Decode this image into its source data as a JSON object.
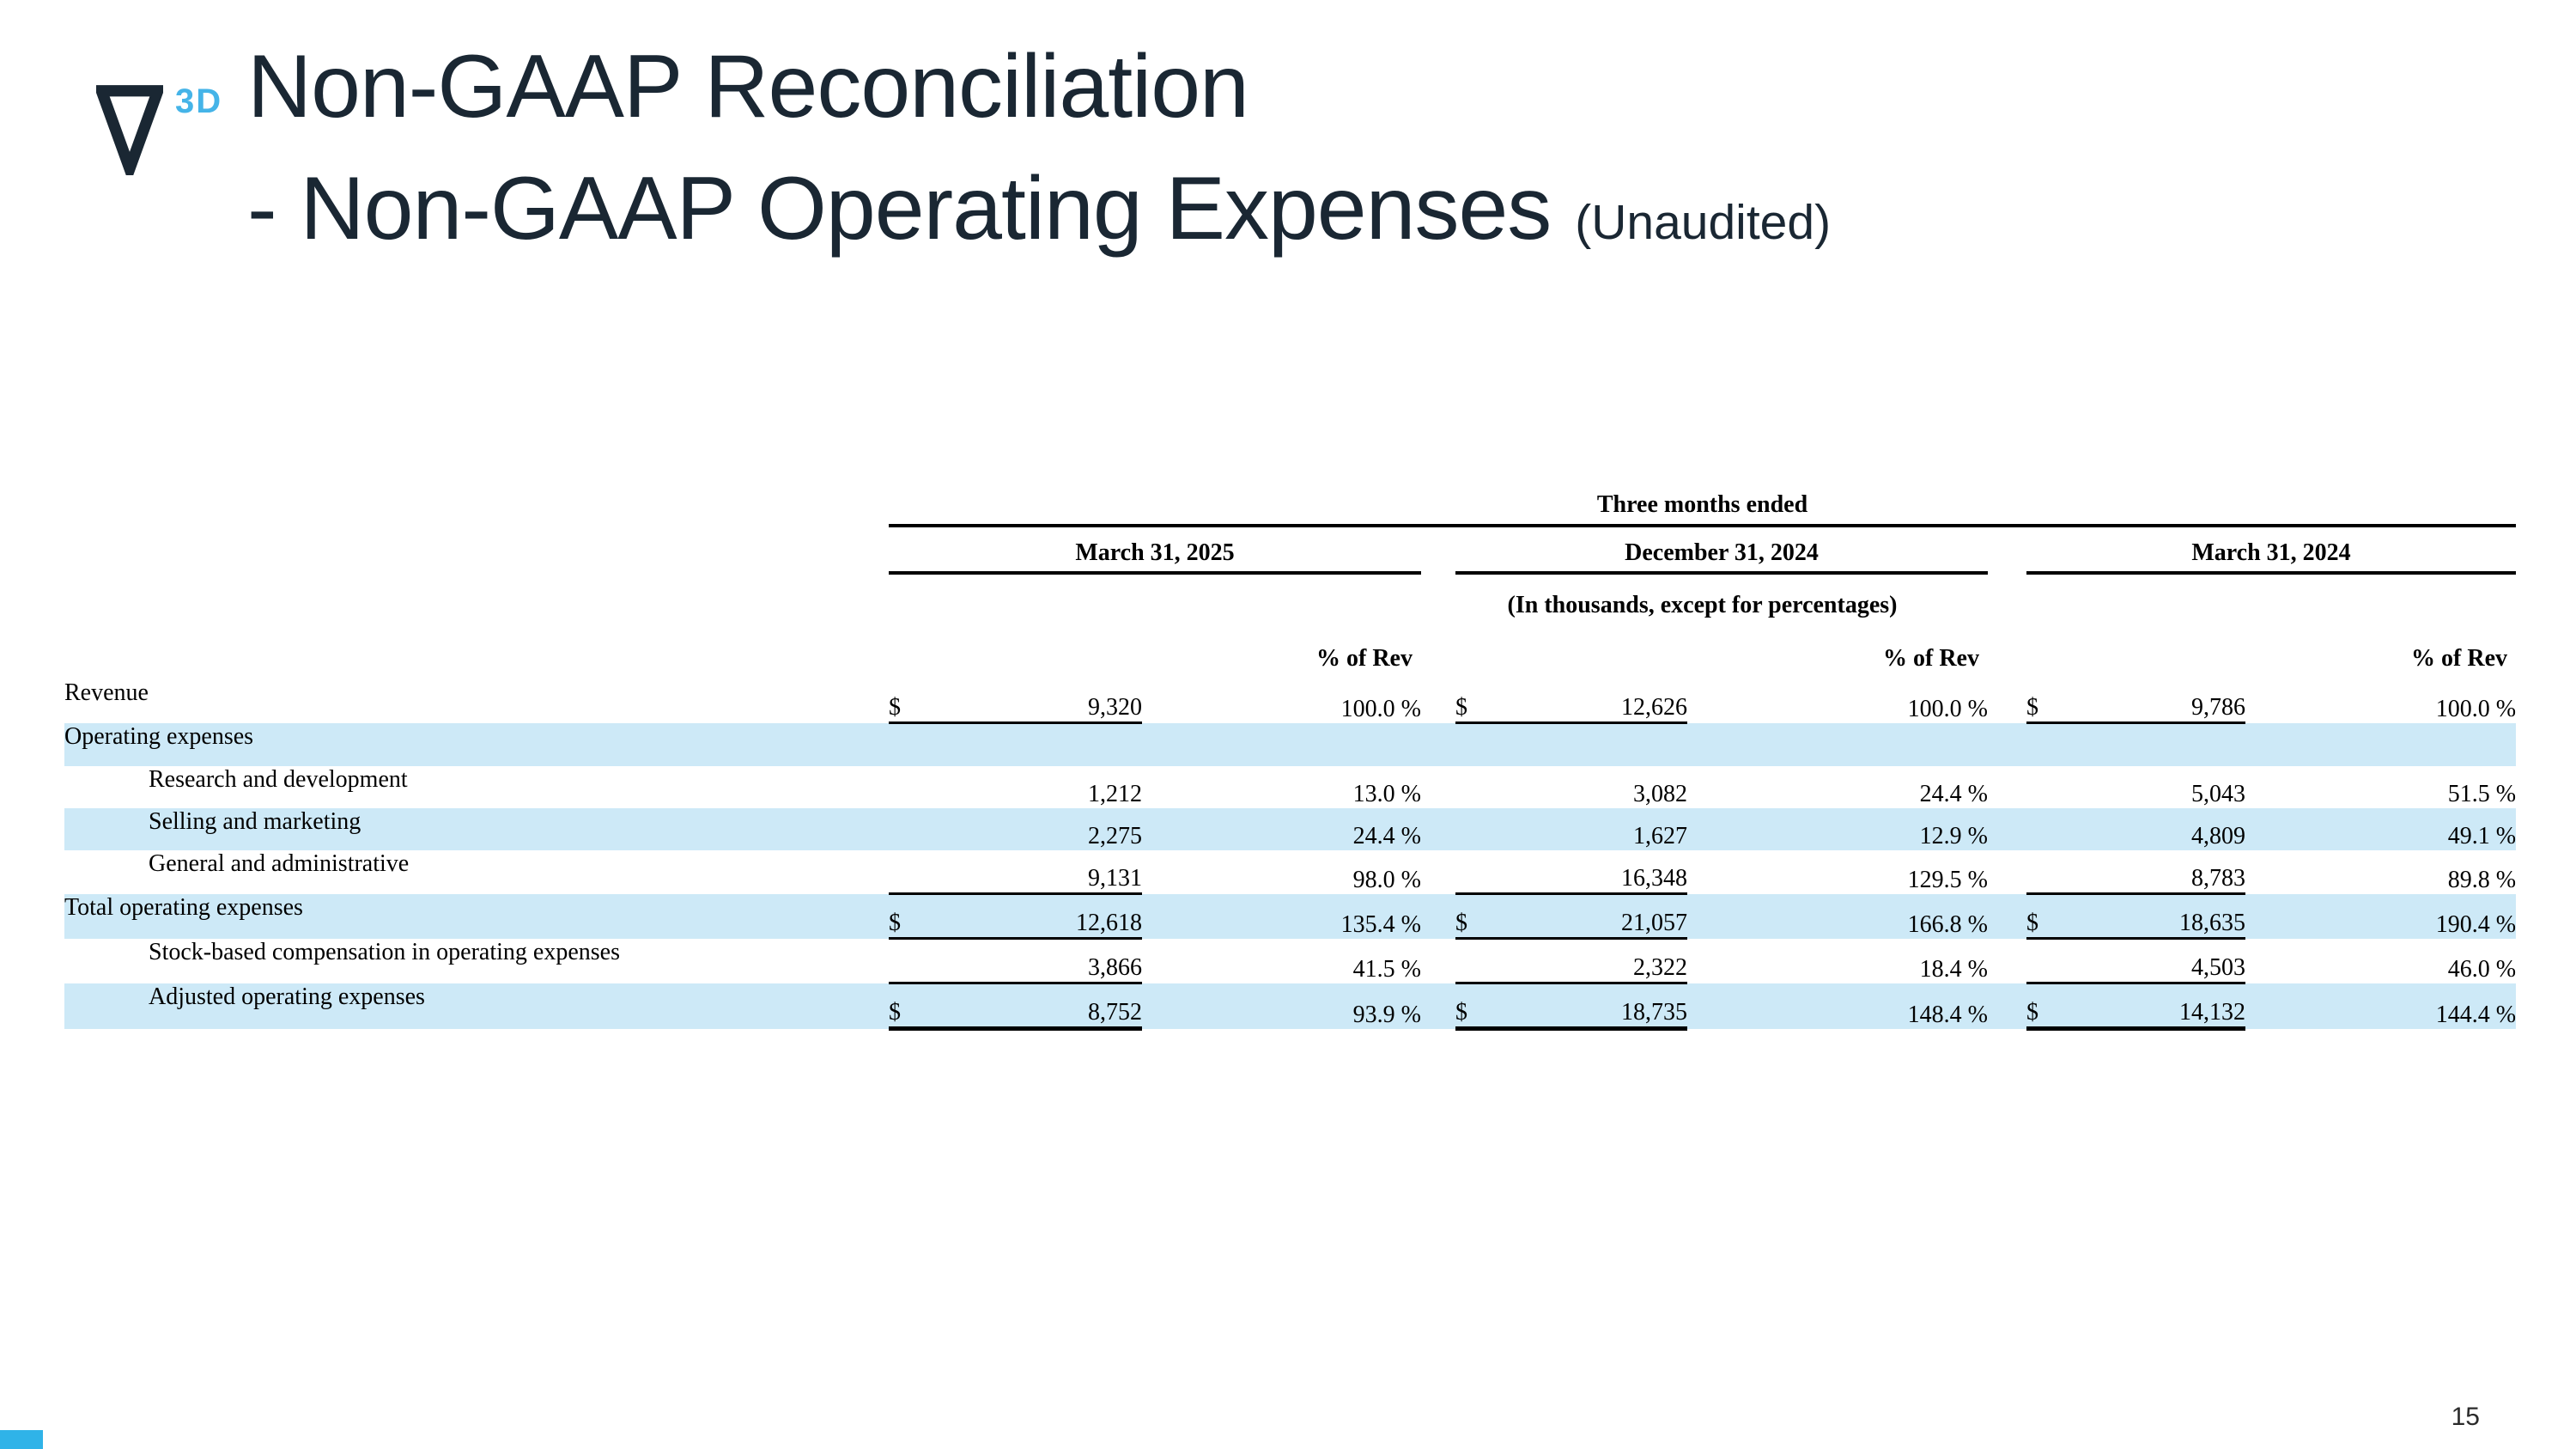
{
  "slide": {
    "logo_text": "3D",
    "title_line1": "Non-GAAP Reconciliation",
    "title_line2": "- Non-GAAP Operating Expenses",
    "title_note": "(Unaudited)",
    "page_number": "15"
  },
  "colors": {
    "title_navy": "#1a2733",
    "logo_blue": "#45b4e8",
    "row_highlight": "#cde9f7",
    "table_rule": "#000000",
    "corner_accent": "#2fb3e8"
  },
  "table": {
    "span_header": "Three months ended",
    "units_note": "(In thousands, except for percentages)",
    "pct_header": "% of Rev",
    "period_columns": [
      "March 31, 2025",
      "December 31, 2024",
      "March 31, 2024"
    ],
    "rows": [
      {
        "label": "Revenue",
        "indent": false,
        "bold_label": false,
        "shaded": false,
        "dollar": true,
        "bold_values": false,
        "rule": "under",
        "values": [
          "9,320",
          "12,626",
          "9,786"
        ],
        "pcts": [
          "100.0 %",
          "100.0 %",
          "100.0 %"
        ]
      },
      {
        "label": "Operating expenses",
        "indent": false,
        "bold_label": true,
        "shaded": true,
        "dollar": false,
        "bold_values": false,
        "rule": "none",
        "values": [
          "",
          "",
          ""
        ],
        "pcts": [
          "",
          "",
          ""
        ]
      },
      {
        "label": "Research and development",
        "indent": true,
        "bold_label": false,
        "shaded": false,
        "dollar": false,
        "bold_values": false,
        "rule": "none",
        "values": [
          "1,212",
          "3,082",
          "5,043"
        ],
        "pcts": [
          "13.0 %",
          "24.4 %",
          "51.5 %"
        ]
      },
      {
        "label": "Selling and marketing",
        "indent": true,
        "bold_label": false,
        "shaded": true,
        "dollar": false,
        "bold_values": false,
        "rule": "none",
        "values": [
          "2,275",
          "1,627",
          "4,809"
        ],
        "pcts": [
          "24.4 %",
          "12.9 %",
          "49.1 %"
        ]
      },
      {
        "label": "General and administrative",
        "indent": true,
        "bold_label": false,
        "shaded": false,
        "dollar": false,
        "bold_values": false,
        "rule": "under",
        "values": [
          "9,131",
          "16,348",
          "8,783"
        ],
        "pcts": [
          "98.0 %",
          "129.5 %",
          "89.8 %"
        ]
      },
      {
        "label": "Total operating expenses",
        "indent": false,
        "bold_label": false,
        "shaded": true,
        "dollar": true,
        "bold_values": false,
        "rule": "under",
        "values": [
          "12,618",
          "21,057",
          "18,635"
        ],
        "pcts": [
          "135.4 %",
          "166.8 %",
          "190.4 %"
        ]
      },
      {
        "label": "Stock-based compensation in operating expenses",
        "indent": true,
        "bold_label": false,
        "shaded": false,
        "dollar": false,
        "bold_values": false,
        "rule": "under",
        "values": [
          "3,866",
          "2,322",
          "4,503"
        ],
        "pcts": [
          "41.5 %",
          "18.4 %",
          "46.0 %"
        ]
      },
      {
        "label": "Adjusted operating expenses",
        "indent": true,
        "bold_label": false,
        "shaded": true,
        "dollar": true,
        "bold_values": true,
        "rule": "final",
        "values": [
          "8,752",
          "18,735",
          "14,132"
        ],
        "pcts": [
          "93.9 %",
          "148.4 %",
          "144.4 %"
        ]
      }
    ]
  }
}
